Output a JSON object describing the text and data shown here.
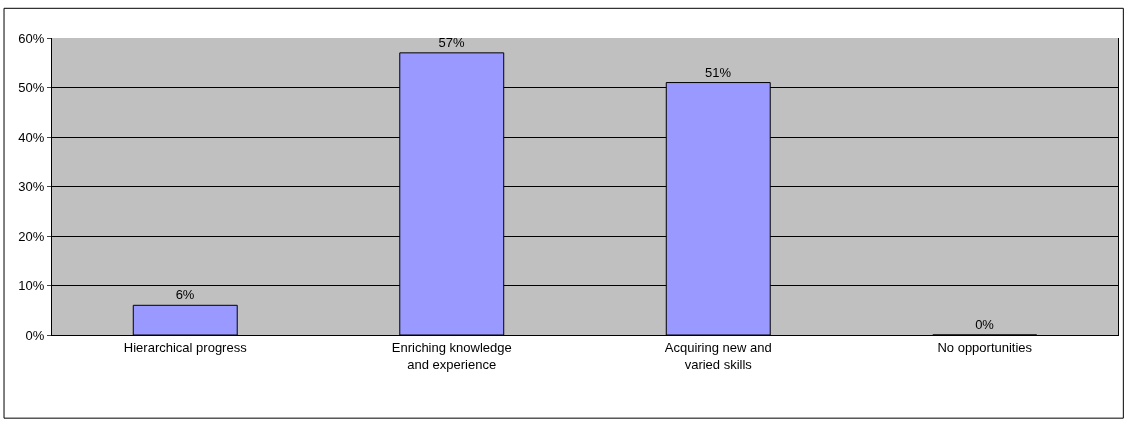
{
  "chart_data": {
    "type": "bar",
    "categories": [
      "Hierarchical progress",
      "Enriching knowledge and experience",
      "Acquiring new and varied skills",
      "No opportunities"
    ],
    "values": [
      6,
      57,
      51,
      0
    ],
    "value_labels": [
      "6%",
      "57%",
      "51%",
      "0%"
    ],
    "color": "#9999ff",
    "ylim": [
      0,
      60
    ],
    "yticks": [
      {
        "value": 0,
        "label": "0%"
      },
      {
        "value": 10,
        "label": "10%"
      },
      {
        "value": 20,
        "label": "20%"
      },
      {
        "value": 30,
        "label": "30%"
      },
      {
        "value": 40,
        "label": "40%"
      },
      {
        "value": 50,
        "label": "50%"
      },
      {
        "value": 60,
        "label": "60%"
      }
    ],
    "grid": "y"
  }
}
